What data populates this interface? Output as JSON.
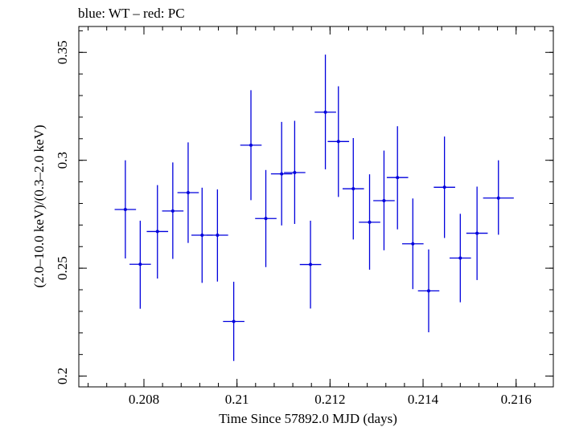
{
  "chart_data": {
    "type": "scatter",
    "title": "blue: WT – red: PC",
    "xlabel": "Time Since 57892.0 MJD (days)",
    "ylabel": "(2.0–10.0 keV)/(0.3–2.0 keV)",
    "xlim": [
      0.2066,
      0.2168
    ],
    "ylim": [
      0.195,
      0.362
    ],
    "x_ticks": [
      0.208,
      0.21,
      0.212,
      0.214,
      0.216
    ],
    "x_tick_labels": [
      "0.208",
      "0.21",
      "0.212",
      "0.214",
      "0.216"
    ],
    "y_ticks": [
      0.2,
      0.25,
      0.3,
      0.35
    ],
    "y_tick_labels": [
      "0.2",
      "0.25",
      "0.3",
      "0.35"
    ],
    "grid": false,
    "series": [
      {
        "color": "#0000dd",
        "points": [
          {
            "x": 0.2076,
            "y": 0.2772,
            "xerr": 0.00023,
            "ylo": 0.2545,
            "yhi": 0.3
          },
          {
            "x": 0.20792,
            "y": 0.2518,
            "xerr": 0.00023,
            "ylo": 0.2312,
            "yhi": 0.272
          },
          {
            "x": 0.20829,
            "y": 0.267,
            "xerr": 0.00023,
            "ylo": 0.2452,
            "yhi": 0.2885
          },
          {
            "x": 0.20862,
            "y": 0.2765,
            "xerr": 0.00023,
            "ylo": 0.2543,
            "yhi": 0.299
          },
          {
            "x": 0.20895,
            "y": 0.285,
            "xerr": 0.00023,
            "ylo": 0.2617,
            "yhi": 0.3083
          },
          {
            "x": 0.20925,
            "y": 0.2653,
            "xerr": 0.00023,
            "ylo": 0.2432,
            "yhi": 0.2873
          },
          {
            "x": 0.20958,
            "y": 0.2653,
            "xerr": 0.00023,
            "ylo": 0.2438,
            "yhi": 0.2865
          },
          {
            "x": 0.20993,
            "y": 0.2253,
            "xerr": 0.00023,
            "ylo": 0.207,
            "yhi": 0.2437
          },
          {
            "x": 0.2103,
            "y": 0.307,
            "xerr": 0.00023,
            "ylo": 0.2815,
            "yhi": 0.3325
          },
          {
            "x": 0.21062,
            "y": 0.273,
            "xerr": 0.00023,
            "ylo": 0.2505,
            "yhi": 0.2955
          },
          {
            "x": 0.21096,
            "y": 0.2937,
            "xerr": 0.00023,
            "ylo": 0.2698,
            "yhi": 0.3178
          },
          {
            "x": 0.21124,
            "y": 0.2943,
            "xerr": 0.00023,
            "ylo": 0.2705,
            "yhi": 0.3183
          },
          {
            "x": 0.21158,
            "y": 0.2517,
            "xerr": 0.00023,
            "ylo": 0.2313,
            "yhi": 0.272
          },
          {
            "x": 0.2119,
            "y": 0.3223,
            "xerr": 0.00023,
            "ylo": 0.2958,
            "yhi": 0.349
          },
          {
            "x": 0.21218,
            "y": 0.3087,
            "xerr": 0.00023,
            "ylo": 0.283,
            "yhi": 0.3343
          },
          {
            "x": 0.2125,
            "y": 0.2868,
            "xerr": 0.00023,
            "ylo": 0.2633,
            "yhi": 0.3103
          },
          {
            "x": 0.21285,
            "y": 0.2713,
            "xerr": 0.00023,
            "ylo": 0.2493,
            "yhi": 0.2935
          },
          {
            "x": 0.21316,
            "y": 0.2813,
            "xerr": 0.00023,
            "ylo": 0.2583,
            "yhi": 0.3045
          },
          {
            "x": 0.21345,
            "y": 0.292,
            "xerr": 0.00023,
            "ylo": 0.268,
            "yhi": 0.3158
          },
          {
            "x": 0.21378,
            "y": 0.2613,
            "xerr": 0.00023,
            "ylo": 0.2403,
            "yhi": 0.2823
          },
          {
            "x": 0.21412,
            "y": 0.2395,
            "xerr": 0.00023,
            "ylo": 0.2203,
            "yhi": 0.2587
          },
          {
            "x": 0.21446,
            "y": 0.2875,
            "xerr": 0.00023,
            "ylo": 0.264,
            "yhi": 0.311
          },
          {
            "x": 0.2148,
            "y": 0.2547,
            "xerr": 0.00023,
            "ylo": 0.2342,
            "yhi": 0.2752
          },
          {
            "x": 0.21516,
            "y": 0.2662,
            "xerr": 0.00023,
            "ylo": 0.2445,
            "yhi": 0.2878
          },
          {
            "x": 0.21562,
            "y": 0.2825,
            "xerr": 0.00033,
            "ylo": 0.2655,
            "yhi": 0.3
          }
        ]
      }
    ]
  }
}
